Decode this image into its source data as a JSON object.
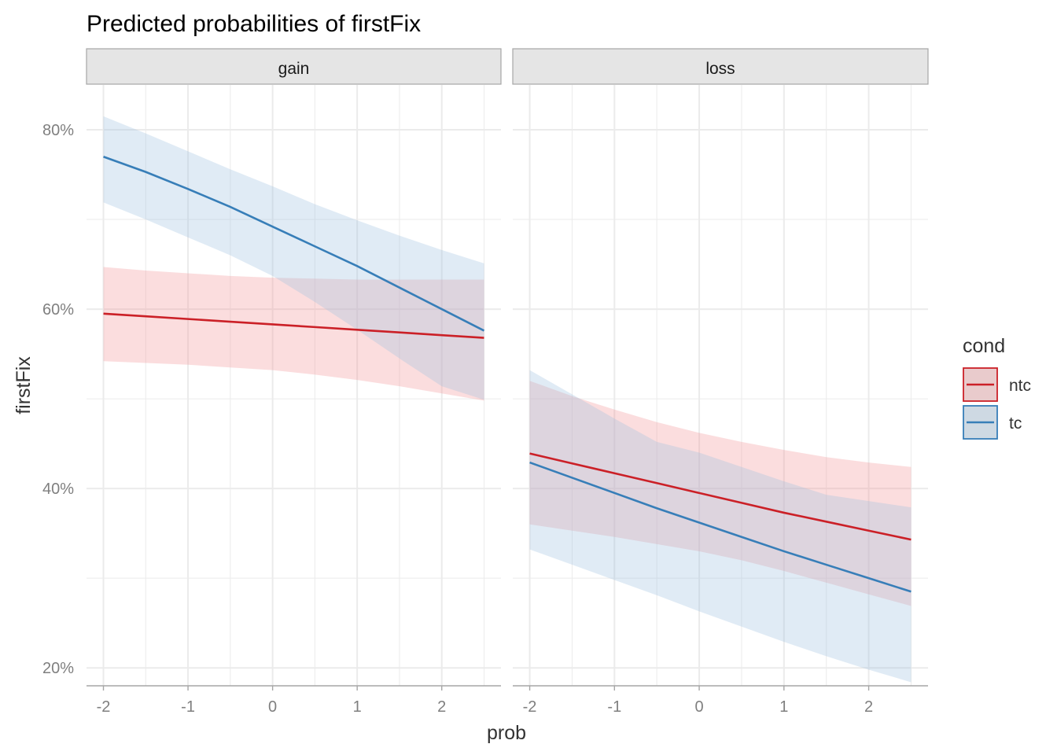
{
  "chart_data": {
    "type": "line",
    "title": "Predicted probabilities of firstFix",
    "xlabel": "prob",
    "ylabel": "firstFix",
    "xlim": [
      -2.2,
      2.7
    ],
    "ylim": [
      0.18,
      0.85
    ],
    "x_ticks": [
      -2,
      -1,
      0,
      1,
      2
    ],
    "x_tick_labels": [
      "-2",
      "-1",
      "0",
      "1",
      "2"
    ],
    "y_ticks": [
      0.2,
      0.4,
      0.6,
      0.8
    ],
    "y_tick_labels": [
      "20%",
      "40%",
      "60%",
      "80%"
    ],
    "grid": true,
    "legend": {
      "title": "cond",
      "position": "right",
      "entries": [
        {
          "label": "ntc",
          "color": "#CB2027"
        },
        {
          "label": "tc",
          "color": "#377EB8"
        }
      ]
    },
    "colors": {
      "ntc": "#CB2027",
      "tc": "#377EB8",
      "ntc_fill": "#F49599",
      "tc_fill": "#9EC1E1",
      "strip_bg": "#E5E5E5",
      "grid": "#EBEBEB"
    },
    "panels": [
      {
        "label": "gain",
        "series": [
          {
            "name": "ntc",
            "x": [
              -2,
              -1.5,
              -1,
              -0.5,
              0,
              0.5,
              1,
              1.5,
              2,
              2.5
            ],
            "y": [
              0.595,
              0.592,
              0.589,
              0.586,
              0.583,
              0.58,
              0.577,
              0.574,
              0.571,
              0.568
            ],
            "lower": [
              0.542,
              0.54,
              0.538,
              0.535,
              0.532,
              0.527,
              0.521,
              0.514,
              0.506,
              0.498
            ],
            "upper": [
              0.647,
              0.643,
              0.64,
              0.637,
              0.635,
              0.634,
              0.633,
              0.633,
              0.633,
              0.633
            ]
          },
          {
            "name": "tc",
            "x": [
              -2,
              -1.5,
              -1,
              -0.5,
              0,
              0.5,
              1,
              1.5,
              2,
              2.5
            ],
            "y": [
              0.77,
              0.753,
              0.734,
              0.714,
              0.692,
              0.67,
              0.648,
              0.624,
              0.6,
              0.576
            ],
            "lower": [
              0.719,
              0.7,
              0.68,
              0.66,
              0.637,
              0.608,
              0.577,
              0.545,
              0.514,
              0.499
            ],
            "upper": [
              0.815,
              0.796,
              0.776,
              0.756,
              0.737,
              0.717,
              0.699,
              0.682,
              0.666,
              0.651
            ]
          }
        ]
      },
      {
        "label": "loss",
        "series": [
          {
            "name": "ntc",
            "x": [
              -2,
              -1.5,
              -1,
              -0.5,
              0,
              0.5,
              1,
              1.5,
              2,
              2.5
            ],
            "y": [
              0.439,
              0.428,
              0.417,
              0.406,
              0.395,
              0.384,
              0.373,
              0.363,
              0.353,
              0.343
            ],
            "lower": [
              0.36,
              0.353,
              0.346,
              0.338,
              0.33,
              0.32,
              0.308,
              0.295,
              0.282,
              0.269
            ],
            "upper": [
              0.52,
              0.503,
              0.488,
              0.474,
              0.462,
              0.452,
              0.443,
              0.435,
              0.429,
              0.424
            ]
          },
          {
            "name": "tc",
            "x": [
              -2,
              -1.5,
              -1,
              -0.5,
              0,
              0.5,
              1,
              1.5,
              2,
              2.5
            ],
            "y": [
              0.429,
              0.412,
              0.395,
              0.378,
              0.362,
              0.346,
              0.33,
              0.315,
              0.3,
              0.285
            ],
            "lower": [
              0.332,
              0.315,
              0.298,
              0.281,
              0.263,
              0.246,
              0.229,
              0.213,
              0.198,
              0.184
            ],
            "upper": [
              0.532,
              0.505,
              0.478,
              0.452,
              0.44,
              0.424,
              0.408,
              0.393,
              0.386,
              0.379
            ]
          }
        ]
      }
    ]
  }
}
